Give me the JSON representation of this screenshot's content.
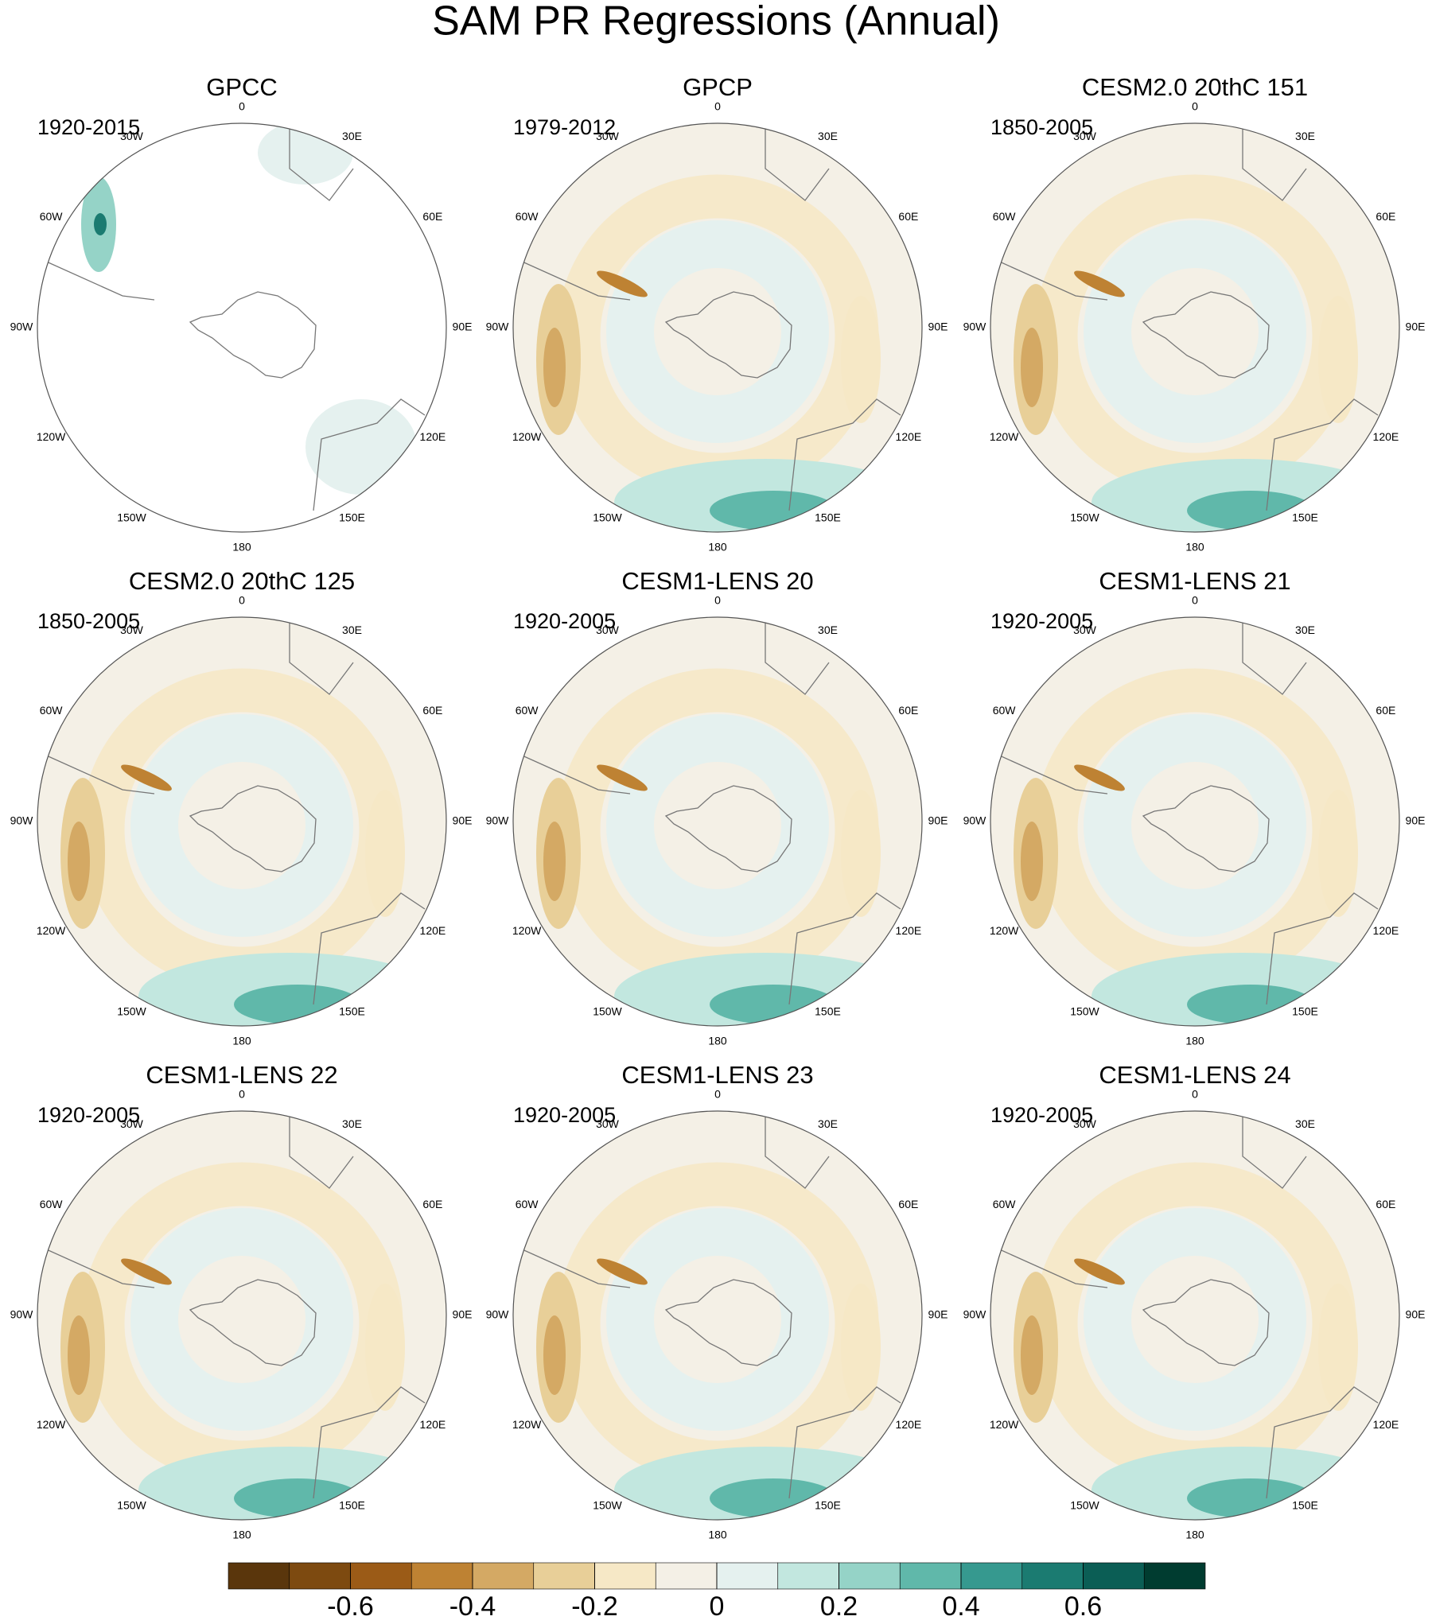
{
  "chart_data": {
    "type": "polar-map-panels",
    "title": "SAM PR Regressions (Annual)",
    "panels": [
      {
        "title": "GPCC",
        "period": "1920-2015"
      },
      {
        "title": "GPCP",
        "period": "1979-2012"
      },
      {
        "title": "CESM2.0 20thC 151",
        "period": "1850-2005"
      },
      {
        "title": "CESM2.0 20thC 125",
        "period": "1850-2005"
      },
      {
        "title": "CESM1-LENS 20",
        "period": "1920-2005"
      },
      {
        "title": "CESM1-LENS 21",
        "period": "1920-2005"
      },
      {
        "title": "CESM1-LENS 22",
        "period": "1920-2005"
      },
      {
        "title": "CESM1-LENS 23",
        "period": "1920-2005"
      },
      {
        "title": "CESM1-LENS 24",
        "period": "1920-2005"
      }
    ],
    "lon_labels": [
      "0",
      "30E",
      "60E",
      "90E",
      "120E",
      "150E",
      "180",
      "150W",
      "120W",
      "90W",
      "60W",
      "30W"
    ],
    "colorbar": {
      "clim": [
        -0.8,
        0.8
      ],
      "colors": [
        "#5a360c",
        "#7d4a10",
        "#9b5b17",
        "#be8233",
        "#d4a964",
        "#e8cf98",
        "#f6e8c6",
        "#f4f0e6",
        "#e5f1ef",
        "#c2e7df",
        "#95d3c7",
        "#60b8aa",
        "#36998f",
        "#1b7b71",
        "#0b5e55",
        "#003c30"
      ],
      "ticks": [
        -0.6,
        -0.4,
        -0.2,
        0,
        0.2,
        0.4,
        0.6
      ]
    }
  }
}
